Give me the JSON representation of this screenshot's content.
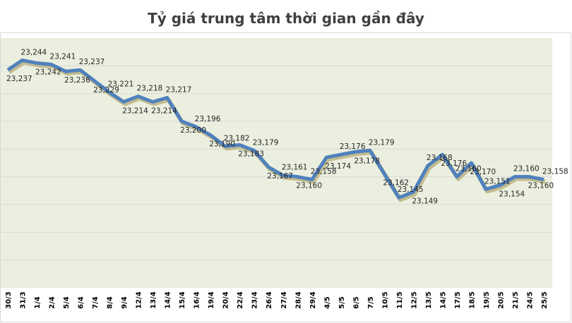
{
  "chart_data": {
    "type": "line",
    "title": "Tỷ giá trung tâm thời gian gần đây",
    "xlabel": "",
    "ylabel": "",
    "ylim": [
      23080,
      23260
    ],
    "grid": true,
    "y_tick_labels_shown": false,
    "colors": {
      "line": "#4f81bd",
      "plot_bg": "#ebefdf",
      "grid": "#d9d9d9"
    },
    "categories": [
      "30/3",
      "31/3",
      "1/4",
      "2/4",
      "5/4",
      "6/4",
      "7/4",
      "8/4",
      "9/4",
      "12/4",
      "13/4",
      "14/4",
      "15/4",
      "16/4",
      "19/4",
      "20/4",
      "22/4",
      "23/4",
      "26/4",
      "27/4",
      "28/4",
      "29/4",
      "4/5",
      "5/5",
      "6/5",
      "7/5",
      "10/5",
      "11/5",
      "12/5",
      "13/5",
      "14/5",
      "17/5",
      "18/5",
      "19/5",
      "20/5",
      "21/5",
      "24/5",
      "25/5"
    ],
    "values": [
      23237,
      23244,
      23242,
      23241,
      23236,
      23237,
      23229,
      23221,
      23214,
      23218,
      23214,
      23217,
      23200,
      23196,
      23190,
      23182,
      23183,
      23179,
      23167,
      23161,
      23160,
      23158,
      23174,
      23176,
      23178,
      23179,
      23162,
      23145,
      23149,
      23168,
      23176,
      23160,
      23170,
      23151,
      23154,
      23160,
      23160,
      23158
    ]
  }
}
